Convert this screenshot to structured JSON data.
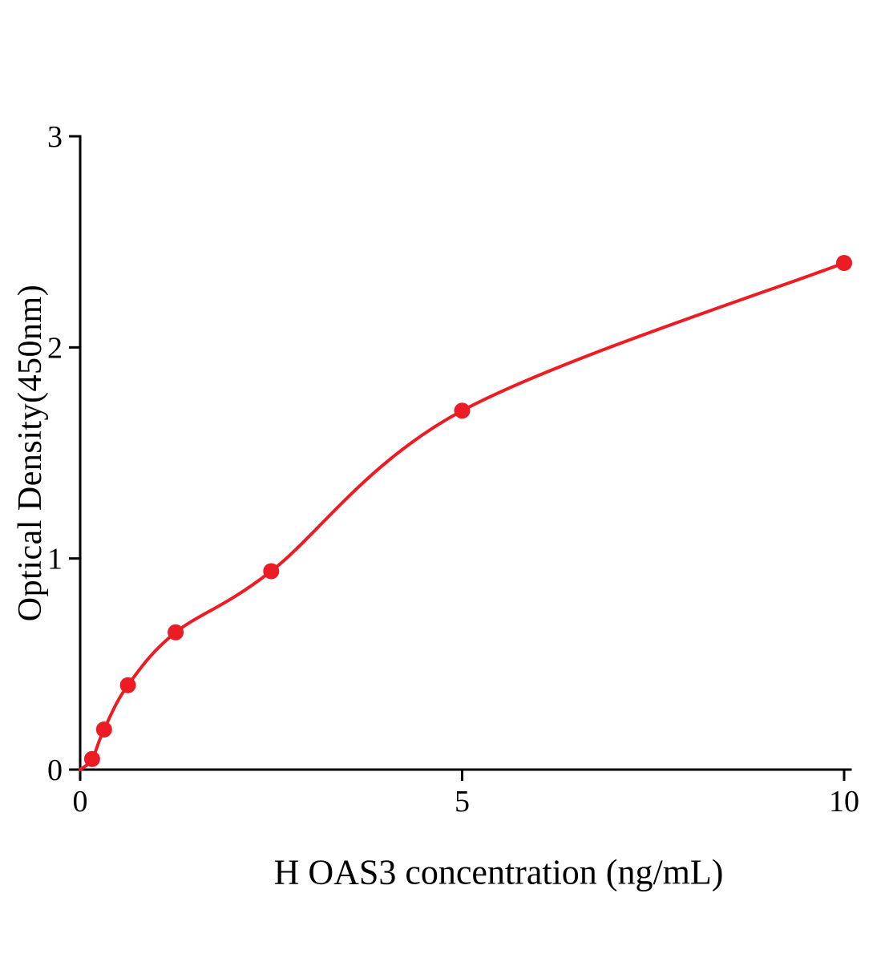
{
  "chart_data": {
    "type": "scatter",
    "title": "",
    "xlabel": "H OAS3 concentration (ng/mL)",
    "ylabel": "Optical Density(450nm)",
    "x": [
      0.156,
      0.3125,
      0.625,
      1.25,
      2.5,
      5,
      10
    ],
    "y": [
      0.05,
      0.19,
      0.4,
      0.65,
      0.94,
      1.7,
      2.4
    ],
    "curve": {
      "type": "smooth-fit-through-origin",
      "start": [
        0,
        0
      ],
      "end": [
        10,
        2.4
      ]
    },
    "xlim": [
      0,
      10.2
    ],
    "ylim": [
      0,
      3
    ],
    "xticks": [
      0,
      5,
      10
    ],
    "yticks": [
      0,
      1,
      2,
      3
    ],
    "point_color": "#ed1c24",
    "line_color": "#ed1c24",
    "axis_color": "#000000",
    "grid": false,
    "legend": null,
    "marker_radius_px": 10
  }
}
